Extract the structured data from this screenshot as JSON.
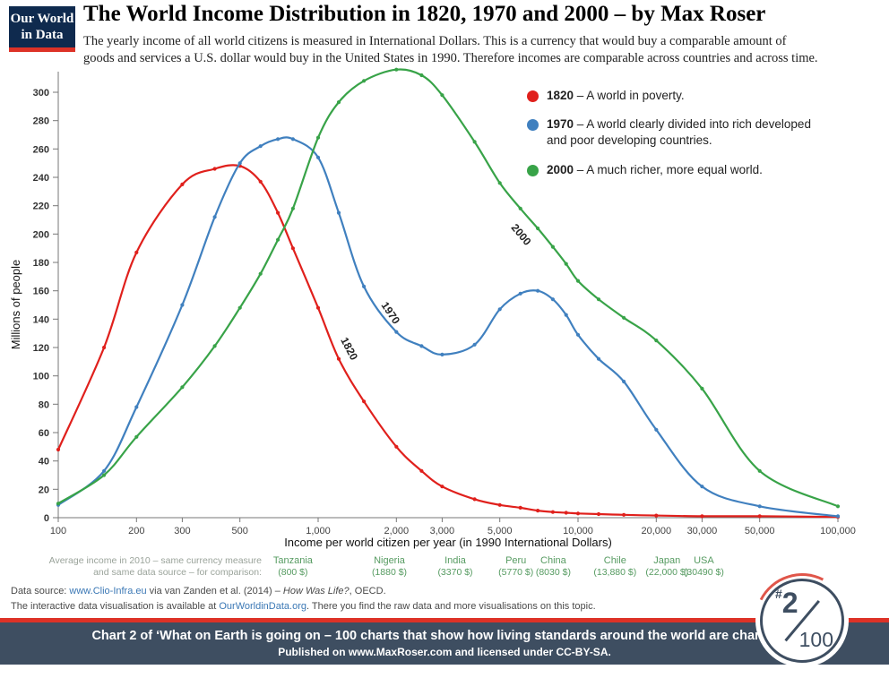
{
  "theme": {
    "accent_red": "#dd3227",
    "banner_navy": "#3e4e61",
    "logo_navy": "#0f2a4e",
    "link_blue": "#3b78b5",
    "country_green": "#569b61"
  },
  "logo": {
    "line1": "Our World",
    "line2": "in Data"
  },
  "header": {
    "title": "The World Income Distribution in 1820, 1970 and 2000 – by Max Roser",
    "subtitle": "The yearly income of all world citizens is measured in International Dollars. This is a currency that would buy a comparable amount of\ngoods and services a U.S. dollar would buy in the United States in 1990. Therefore incomes are comparable across countries and across time."
  },
  "chart_data": {
    "type": "line",
    "x_scale": "log",
    "title": "The World Income Distribution in 1820, 1970 and 2000",
    "xlabel": "Income per world citizen per year (in 1990 International Dollars)",
    "ylabel": "Millions of people",
    "xlim": [
      100,
      100000
    ],
    "ylim": [
      0,
      320
    ],
    "grid": false,
    "legend_position": "top-right",
    "y_ticks": [
      0,
      20,
      40,
      60,
      80,
      100,
      120,
      140,
      160,
      180,
      200,
      220,
      240,
      260,
      280,
      300
    ],
    "x_ticks": [
      {
        "v": 100,
        "label": "100"
      },
      {
        "v": 200,
        "label": "200"
      },
      {
        "v": 300,
        "label": "300"
      },
      {
        "v": 500,
        "label": "500"
      },
      {
        "v": 1000,
        "label": "1,000"
      },
      {
        "v": 2000,
        "label": "2,000"
      },
      {
        "v": 3000,
        "label": "3,000"
      },
      {
        "v": 5000,
        "label": "5,000"
      },
      {
        "v": 10000,
        "label": "10,000"
      },
      {
        "v": 20000,
        "label": "20,000"
      },
      {
        "v": 30000,
        "label": "30,000"
      },
      {
        "v": 50000,
        "label": "50,000"
      },
      {
        "v": 100000,
        "label": "100,000"
      }
    ],
    "x": [
      100,
      150,
      200,
      300,
      400,
      500,
      600,
      700,
      800,
      1000,
      1200,
      1500,
      2000,
      2500,
      3000,
      4000,
      5000,
      6000,
      7000,
      8000,
      9000,
      10000,
      12000,
      15000,
      20000,
      30000,
      50000,
      100000
    ],
    "series": [
      {
        "name": "1820",
        "color": "#e0201c",
        "values": [
          48,
          120,
          187,
          235,
          246,
          248,
          237,
          215,
          190,
          148,
          112,
          82,
          50,
          33,
          22,
          13,
          9,
          7,
          5,
          4,
          3.5,
          3,
          2.5,
          2,
          1.5,
          1,
          1,
          0.5
        ],
        "curve_label": {
          "text": "1820",
          "at_x": 1280,
          "at_y": 118,
          "rotate": 62
        }
      },
      {
        "name": "1970",
        "color": "#4080bf",
        "values": [
          9,
          33,
          78,
          150,
          212,
          250,
          262,
          267,
          267,
          254,
          215,
          163,
          131,
          121,
          115,
          122,
          147,
          158,
          160,
          154,
          143,
          129,
          112,
          96,
          62,
          22,
          8,
          1
        ],
        "curve_label": {
          "text": "1970",
          "at_x": 1850,
          "at_y": 143,
          "rotate": 56
        }
      },
      {
        "name": "2000",
        "color": "#38a348",
        "values": [
          10,
          30,
          57,
          92,
          121,
          148,
          172,
          196,
          218,
          268,
          293,
          308,
          316,
          312,
          298,
          265,
          236,
          218,
          204,
          191,
          179,
          167,
          154,
          141,
          125,
          91,
          33,
          8
        ],
        "curve_label": {
          "text": "2000",
          "at_x": 5900,
          "at_y": 198,
          "rotate": 50
        }
      }
    ],
    "legend": [
      {
        "year": "1820",
        "desc": " – A world in poverty."
      },
      {
        "year": "1970",
        "desc": " – A world clearly divided into rich developed\nand poor developing countries."
      },
      {
        "year": "2000",
        "desc": " – A much richer, more equal world."
      }
    ],
    "comparison": {
      "caption_line1": "Average income in 2010 – same currency measure",
      "caption_line2": "and same data source – for comparison:",
      "countries": [
        {
          "name": "Tanzania",
          "label": "(800 $)",
          "income": 800
        },
        {
          "name": "Nigeria",
          "label": "(1880 $)",
          "income": 1880
        },
        {
          "name": "India",
          "label": "(3370 $)",
          "income": 3370
        },
        {
          "name": "Peru",
          "label": "(5770 $)",
          "income": 5770
        },
        {
          "name": "China",
          "label": "(8030 $)",
          "income": 8030
        },
        {
          "name": "Chile",
          "label": "(13,880 $)",
          "income": 13880
        },
        {
          "name": "Japan",
          "label": "(22,000 $)",
          "income": 22000
        },
        {
          "name": "USA",
          "label": "(30490 $)",
          "income": 30490
        }
      ]
    }
  },
  "footer": {
    "source_prefix": "Data source: ",
    "source_link": "www.Clio-Infra.eu",
    "source_mid": " via van Zanden et al. (2014) – ",
    "source_italic": "How Was Life?",
    "source_suffix": ", OECD.",
    "interactive_prefix": "The interactive data visualisation is available at ",
    "interactive_link": "OurWorldinData.org",
    "interactive_suffix": ". There you find the raw data and more visualisations on this topic."
  },
  "banner": {
    "line1": "Chart 2 of ‘What on Earth is going on – 100 charts that show how living standards around the world are changing’.",
    "line2": "Published on www.MaxRoser.com and licensed under CC-BY-SA."
  },
  "badge": {
    "hash": "#",
    "number": "2",
    "denominator": "100"
  }
}
